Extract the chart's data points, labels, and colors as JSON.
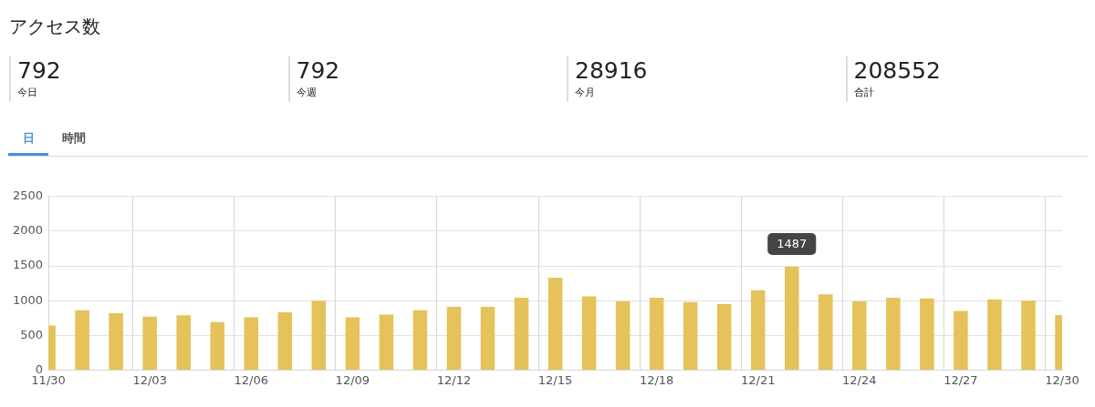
{
  "chart_data": {
    "type": "bar",
    "title": "アクセス数",
    "annotations": [
      "792",
      "今日",
      "792",
      "今週",
      "28916",
      "今月",
      "208552",
      "合計",
      "日",
      "時間"
    ],
    "categories": [
      "11/30",
      null,
      null,
      "12/03",
      null,
      null,
      "12/06",
      null,
      null,
      "12/09",
      null,
      null,
      "12/12",
      null,
      null,
      "12/15",
      null,
      null,
      "12/18",
      null,
      null,
      "12/21",
      null,
      null,
      "12/24",
      null,
      null,
      "12/27",
      null,
      null,
      "12/30"
    ],
    "values": [
      640,
      860,
      820,
      770,
      790,
      690,
      760,
      830,
      1000,
      760,
      800,
      860,
      910,
      910,
      1040,
      1330,
      1060,
      990,
      1040,
      980,
      950,
      1150,
      1487,
      1090,
      990,
      1040,
      1030,
      850,
      1020,
      1000,
      792
    ],
    "value_labels": [
      null,
      null,
      null,
      null,
      null,
      null,
      null,
      null,
      null,
      null,
      null,
      null,
      null,
      null,
      null,
      null,
      null,
      null,
      null,
      null,
      null,
      null,
      "1487",
      null,
      null,
      null,
      null,
      null,
      null,
      null,
      null
    ],
    "color": "#e5c35a",
    "ylim": [
      0,
      2500
    ],
    "yticks": [
      0,
      500,
      1000,
      1500,
      2000,
      2500
    ],
    "grid": true,
    "legend": false
  }
}
